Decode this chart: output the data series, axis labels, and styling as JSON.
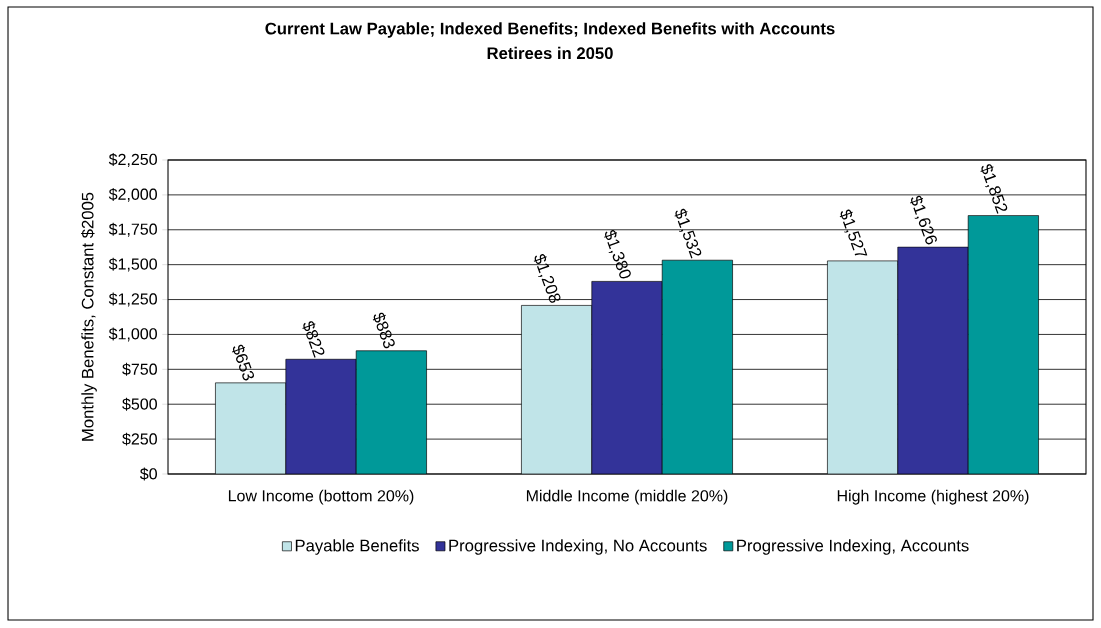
{
  "chart_data": {
    "type": "bar",
    "title": "Current Law Payable; Indexed Benefits; Indexed Benefits with Accounts",
    "subtitle": "Retirees in 2050",
    "ylabel": "Monthly Benefits, Constant $2005",
    "categories": [
      "Low  Income (bottom 20%)",
      "Middle Income (middle 20%)",
      "High Income (highest 20%)"
    ],
    "series": [
      {
        "name": "Payable Benefits",
        "color": "#c0e4e8",
        "values": [
          653,
          1208,
          1527
        ],
        "value_labels": [
          "$653",
          "$1,208",
          "$1,527"
        ]
      },
      {
        "name": "Progressive Indexing, No Accounts",
        "color": "#333399",
        "values": [
          822,
          1380,
          1626
        ],
        "value_labels": [
          "$822",
          "$1,380",
          "$1,626"
        ]
      },
      {
        "name": "Progressive Indexing, Accounts",
        "color": "#009999",
        "values": [
          883,
          1532,
          1852
        ],
        "value_labels": [
          "$883",
          "$1,532",
          "$1,852"
        ]
      }
    ],
    "ylim": [
      0,
      2250
    ],
    "yticks": [
      {
        "value": 0,
        "label": "$0"
      },
      {
        "value": 250,
        "label": "$250"
      },
      {
        "value": 500,
        "label": "$500"
      },
      {
        "value": 750,
        "label": "$750"
      },
      {
        "value": 1000,
        "label": "$1,000"
      },
      {
        "value": 1250,
        "label": "$1,250"
      },
      {
        "value": 1500,
        "label": "$1,500"
      },
      {
        "value": 1750,
        "label": "$1,750"
      },
      {
        "value": 2000,
        "label": "$2,000"
      },
      {
        "value": 2250,
        "label": "$2,250"
      }
    ],
    "grid": "y",
    "legend": "bottom"
  }
}
